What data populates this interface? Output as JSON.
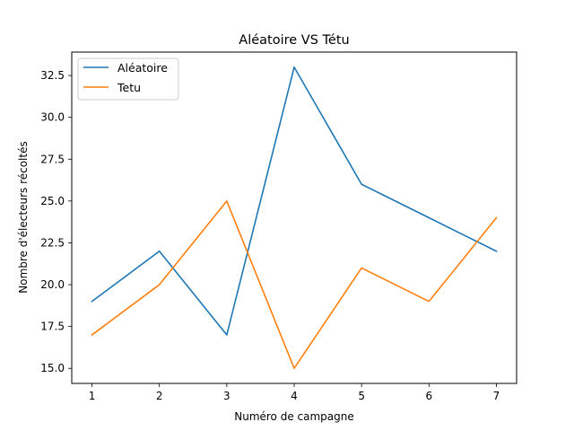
{
  "chart_data": {
    "type": "line",
    "title": "Aléatoire VS Tétu",
    "xlabel": "Numéro de campagne",
    "ylabel": "Nombre d'électeurs récoltés",
    "x": [
      1,
      2,
      3,
      4,
      5,
      6,
      7
    ],
    "xticks": [
      "1",
      "2",
      "3",
      "4",
      "5",
      "6",
      "7"
    ],
    "yticks": [
      "15.0",
      "17.5",
      "20.0",
      "22.5",
      "25.0",
      "27.5",
      "30.0",
      "32.5"
    ],
    "ytick_values": [
      15.0,
      17.5,
      20.0,
      22.5,
      25.0,
      27.5,
      30.0,
      32.5
    ],
    "xlim": [
      0.7,
      7.3
    ],
    "ylim": [
      14.1,
      33.9
    ],
    "grid": false,
    "legend_position": "top-left",
    "series": [
      {
        "name": "Aléatoire",
        "color": "#1f77b4",
        "values": [
          19,
          22,
          17,
          33,
          26,
          24,
          22
        ]
      },
      {
        "name": "Tetu",
        "color": "#ff7f0e",
        "values": [
          17,
          20,
          25,
          15,
          21,
          19,
          24
        ]
      }
    ]
  }
}
